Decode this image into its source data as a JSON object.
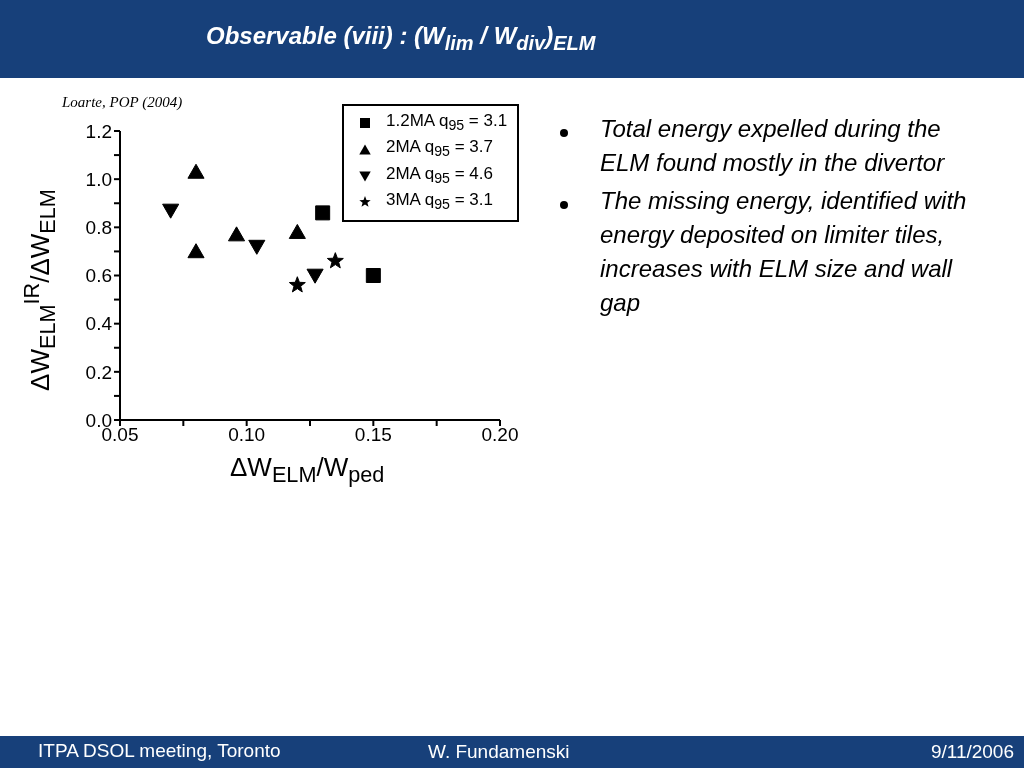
{
  "chart_data": {
    "type": "scatter",
    "title": "Observable (viii) : (W$_{lim}$ / W$_{div}$)$_{ELM}$",
    "xlabel": "ΔW$_{ELM}$/W$_{ped}$",
    "ylabel": "ΔW$_{ELM}$$^{IR}$/ΔW$_{ELM}$",
    "xlim": [
      0.05,
      0.2
    ],
    "ylim": [
      0,
      1.2
    ],
    "xticks": [
      {
        "value": 0.05,
        "label": "0.05"
      },
      {
        "value": 0.075,
        "label": null
      },
      {
        "value": 0.1,
        "label": "0.10"
      },
      {
        "value": 0.125,
        "label": null
      },
      {
        "value": 0.15,
        "label": "0.15"
      },
      {
        "value": 0.175,
        "label": null
      },
      {
        "value": 0.2,
        "label": "0.20"
      }
    ],
    "yticks": [
      {
        "value": 0,
        "label": "0.0"
      },
      {
        "value": 0.1,
        "label": null
      },
      {
        "value": 0.2,
        "label": "0.2"
      },
      {
        "value": 0.3,
        "label": null
      },
      {
        "value": 0.4,
        "label": "0.4"
      },
      {
        "value": 0.5,
        "label": null
      },
      {
        "value": 0.6,
        "label": "0.6"
      },
      {
        "value": 0.7,
        "label": null
      },
      {
        "value": 0.8,
        "label": "0.8"
      },
      {
        "value": 0.9,
        "label": null
      },
      {
        "value": 1.0,
        "label": "1.0"
      },
      {
        "value": 1.1,
        "label": null
      },
      {
        "value": 1.2,
        "label": "1.2"
      }
    ],
    "legend": "top right",
    "series": [
      {
        "name": "1.2MA q$_{95}$ = 3.1",
        "color": "#000000",
        "marker": "square",
        "x": [
          0.13,
          0.15
        ],
        "values": [
          0.86,
          0.6
        ]
      },
      {
        "name": "2MA q$_{95}$ = 3.7",
        "color": "#000000",
        "marker": "triangle",
        "x": [
          0.08,
          0.08,
          0.096,
          0.12
        ],
        "values": [
          1.03,
          0.7,
          0.77,
          0.78
        ]
      },
      {
        "name": "2MA q$_{95}$ = 4.6",
        "color": "#000000",
        "marker": "triangle-down",
        "x": [
          0.07,
          0.104,
          0.127
        ],
        "values": [
          0.87,
          0.72,
          0.6
        ]
      },
      {
        "name": "3MA q$_{95}$ = 3.1",
        "color": "#000000",
        "marker": "star",
        "x": [
          0.12,
          0.135
        ],
        "values": [
          0.56,
          0.66
        ]
      }
    ],
    "annotations": [
      "Loarte, POP (2004)",
      "Total energy expelled during the ELM found mostly in the divertor",
      "The missing energy, identified with energy deposited on limiter tiles, increases with ELM size and wall gap",
      "ITPA DSOL meeting, Toronto",
      "W. Fundamenski",
      "9/11/2006"
    ]
  }
}
